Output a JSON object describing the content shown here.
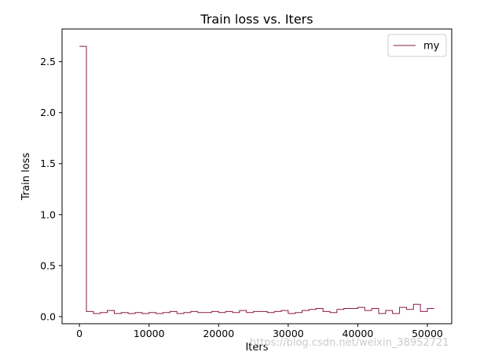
{
  "chart_data": {
    "type": "line",
    "title": "Train loss  vs. Iters",
    "xlabel": "Iters",
    "ylabel": "Train loss",
    "xlim": [
      -2500,
      53500
    ],
    "ylim": [
      -0.07,
      2.82
    ],
    "xticks": [
      0,
      10000,
      20000,
      30000,
      40000,
      50000
    ],
    "xtick_labels": [
      "0",
      "10000",
      "20000",
      "30000",
      "40000",
      "50000"
    ],
    "yticks": [
      0.0,
      0.5,
      1.0,
      1.5,
      2.0,
      2.5
    ],
    "ytick_labels": [
      "0.0",
      "0.5",
      "1.0",
      "1.5",
      "2.0",
      "2.5"
    ],
    "grid": false,
    "legend_position": "top-right",
    "series": [
      {
        "name": "my",
        "color": "#8b1a4a",
        "x": [
          0,
          1000,
          1000,
          2000,
          2000,
          3000,
          3000,
          4000,
          4000,
          5000,
          5000,
          6000,
          6000,
          7000,
          7000,
          8000,
          8000,
          9000,
          9000,
          10000,
          10000,
          11000,
          11000,
          12000,
          12000,
          13000,
          13000,
          14000,
          14000,
          15000,
          15000,
          16000,
          16000,
          17000,
          17000,
          18000,
          18000,
          19000,
          19000,
          20000,
          20000,
          21000,
          21000,
          22000,
          22000,
          23000,
          23000,
          24000,
          24000,
          25000,
          25000,
          26000,
          26000,
          27000,
          27000,
          28000,
          28000,
          29000,
          29000,
          30000,
          30000,
          31000,
          31000,
          32000,
          32000,
          33000,
          33000,
          34000,
          34000,
          35000,
          35000,
          36000,
          36000,
          37000,
          37000,
          38000,
          38000,
          39000,
          39000,
          40000,
          40000,
          41000,
          41000,
          42000,
          42000,
          43000,
          43000,
          44000,
          44000,
          45000,
          45000,
          46000,
          46000,
          47000,
          47000,
          48000,
          48000,
          49000,
          49000,
          50000,
          50000,
          51000
        ],
        "y": [
          2.65,
          2.65,
          0.05,
          0.05,
          0.03,
          0.03,
          0.04,
          0.04,
          0.06,
          0.06,
          0.03,
          0.03,
          0.04,
          0.04,
          0.03,
          0.03,
          0.04,
          0.04,
          0.03,
          0.03,
          0.04,
          0.04,
          0.03,
          0.03,
          0.04,
          0.04,
          0.05,
          0.05,
          0.03,
          0.03,
          0.04,
          0.04,
          0.05,
          0.05,
          0.04,
          0.04,
          0.04,
          0.04,
          0.05,
          0.05,
          0.04,
          0.04,
          0.05,
          0.05,
          0.04,
          0.04,
          0.06,
          0.06,
          0.04,
          0.04,
          0.05,
          0.05,
          0.05,
          0.05,
          0.04,
          0.04,
          0.05,
          0.05,
          0.06,
          0.06,
          0.03,
          0.03,
          0.04,
          0.04,
          0.06,
          0.06,
          0.07,
          0.07,
          0.08,
          0.08,
          0.05,
          0.05,
          0.04,
          0.04,
          0.07,
          0.07,
          0.08,
          0.08,
          0.08,
          0.08,
          0.09,
          0.09,
          0.06,
          0.06,
          0.08,
          0.08,
          0.03,
          0.03,
          0.06,
          0.06,
          0.03,
          0.03,
          0.09,
          0.09,
          0.07,
          0.07,
          0.12,
          0.12,
          0.05,
          0.05,
          0.08,
          0.08
        ]
      }
    ]
  },
  "watermark": "https://blog.csdn.net/weixin_38952721"
}
